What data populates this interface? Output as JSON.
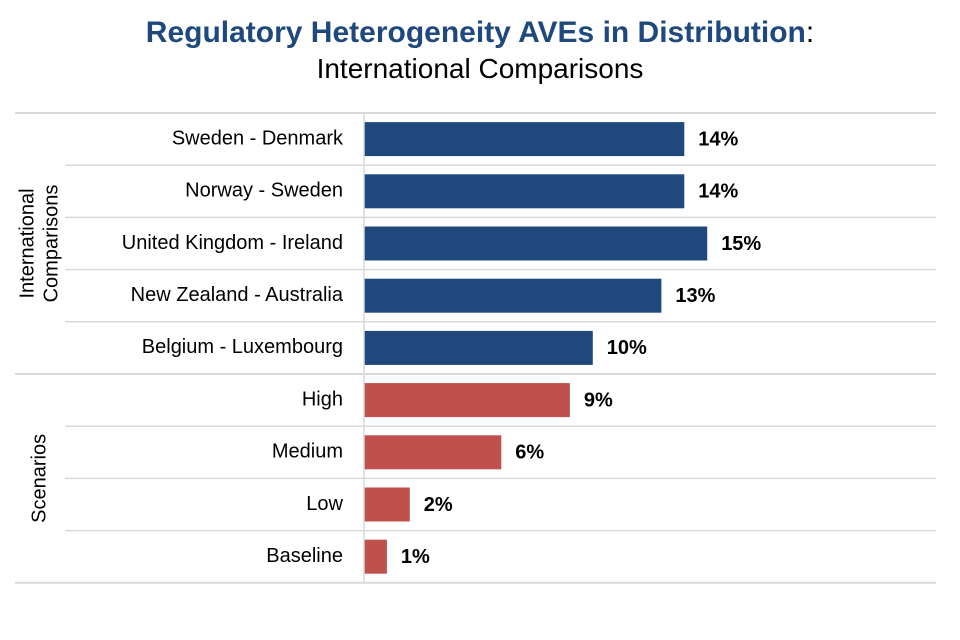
{
  "title": {
    "main": "Regulatory Heterogeneity AVEs in Distribution",
    "colon": ":",
    "subtitle": "International Comparisons"
  },
  "colors": {
    "international": "#1f497d",
    "scenarios": "#c0504d",
    "title": "#1f497d",
    "grid": "#d9d9d9"
  },
  "chart_data": {
    "type": "bar",
    "orientation": "horizontal",
    "title": "Regulatory Heterogeneity AVEs in Distribution: International Comparisons",
    "xlim": [
      0,
      0.25
    ],
    "groups": [
      {
        "name": "International Comparisons",
        "name_lines": [
          "International",
          "Comparisons"
        ],
        "color": "#1f497d",
        "categories": [
          "Sweden - Denmark",
          "Norway - Sweden",
          "United Kingdom - Ireland",
          "New Zealand - Australia",
          "Belgium - Luxembourg"
        ],
        "values": [
          0.14,
          0.14,
          0.15,
          0.13,
          0.1
        ],
        "labels": [
          "14%",
          "14%",
          "15%",
          "13%",
          "10%"
        ]
      },
      {
        "name": "Scenarios",
        "name_lines": [
          "Scenarios"
        ],
        "color": "#c0504d",
        "categories": [
          "High",
          "Medium",
          "Low",
          "Baseline"
        ],
        "values": [
          0.09,
          0.06,
          0.02,
          0.01
        ],
        "labels": [
          "9%",
          "6%",
          "2%",
          "1%"
        ]
      }
    ]
  }
}
